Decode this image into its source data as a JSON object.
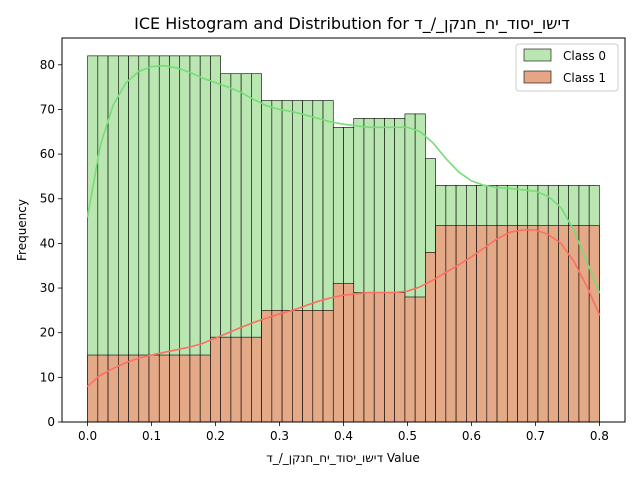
{
  "chart_data": {
    "type": "histogram",
    "title": "ICE Histogram and Distribution for דישו_יסוד_יח_חנקן_/_ד",
    "xlabel": "דישו_יסוד_יח_חנקן_/_ד Value",
    "ylabel": "Frequency",
    "xlim": [
      -0.04,
      0.84
    ],
    "ylim": [
      0,
      86
    ],
    "xticks": [
      0.0,
      0.1,
      0.2,
      0.3,
      0.4,
      0.5,
      0.6,
      0.7,
      0.8
    ],
    "xtick_labels": [
      "0.0",
      "0.1",
      "0.2",
      "0.3",
      "0.4",
      "0.5",
      "0.6",
      "0.7",
      "0.8"
    ],
    "yticks": [
      0,
      10,
      20,
      30,
      40,
      50,
      60,
      70,
      80
    ],
    "ytick_labels": [
      "0",
      "10",
      "20",
      "30",
      "40",
      "50",
      "60",
      "70",
      "80"
    ],
    "bin_edges": [
      0.0,
      0.016,
      0.032,
      0.048,
      0.064,
      0.08,
      0.096,
      0.112,
      0.128,
      0.144,
      0.16,
      0.176,
      0.192,
      0.208,
      0.224,
      0.24,
      0.256,
      0.272,
      0.288,
      0.304,
      0.32,
      0.336,
      0.352,
      0.368,
      0.384,
      0.4,
      0.416,
      0.432,
      0.448,
      0.464,
      0.48,
      0.496,
      0.512,
      0.528,
      0.544,
      0.56,
      0.576,
      0.592,
      0.608,
      0.624,
      0.64,
      0.656,
      0.672,
      0.688,
      0.704,
      0.72,
      0.736,
      0.752,
      0.768,
      0.784,
      0.8
    ],
    "legend_position": "top-right",
    "grid": false,
    "series": [
      {
        "name": "Class 0",
        "color": "#77dd77",
        "fill": "#b9e6b1",
        "values": [
          82,
          82,
          82,
          82,
          82,
          82,
          82,
          82,
          82,
          82,
          82,
          82,
          82,
          78,
          78,
          78,
          78,
          72,
          72,
          72,
          72,
          72,
          72,
          72,
          66,
          66,
          68,
          68,
          68,
          68,
          68,
          69,
          69,
          59,
          53,
          53,
          53,
          53,
          53,
          53,
          53,
          53,
          53,
          53,
          53,
          53,
          53,
          53,
          53,
          53
        ],
        "kde": [
          [
            0.0,
            46
          ],
          [
            0.02,
            62
          ],
          [
            0.04,
            71
          ],
          [
            0.06,
            76
          ],
          [
            0.08,
            78.5
          ],
          [
            0.1,
            79.6
          ],
          [
            0.12,
            79.8
          ],
          [
            0.14,
            79.3
          ],
          [
            0.16,
            78.3
          ],
          [
            0.18,
            77
          ],
          [
            0.2,
            76
          ],
          [
            0.22,
            75
          ],
          [
            0.24,
            73.8
          ],
          [
            0.26,
            72.2
          ],
          [
            0.28,
            70.8
          ],
          [
            0.3,
            70
          ],
          [
            0.32,
            69.5
          ],
          [
            0.34,
            68.8
          ],
          [
            0.36,
            68
          ],
          [
            0.38,
            67.2
          ],
          [
            0.4,
            66.7
          ],
          [
            0.42,
            66.3
          ],
          [
            0.44,
            66
          ],
          [
            0.46,
            66
          ],
          [
            0.48,
            66
          ],
          [
            0.5,
            66
          ],
          [
            0.52,
            65
          ],
          [
            0.54,
            62.5
          ],
          [
            0.56,
            59
          ],
          [
            0.58,
            56
          ],
          [
            0.6,
            54
          ],
          [
            0.62,
            53
          ],
          [
            0.64,
            52.5
          ],
          [
            0.66,
            52.3
          ],
          [
            0.68,
            52
          ],
          [
            0.7,
            51.7
          ],
          [
            0.72,
            50.5
          ],
          [
            0.74,
            48
          ],
          [
            0.76,
            43
          ],
          [
            0.78,
            36
          ],
          [
            0.8,
            29
          ]
        ]
      },
      {
        "name": "Class 1",
        "color": "#ff6f61",
        "fill": "#e6a585",
        "values": [
          15,
          15,
          15,
          15,
          15,
          15,
          15,
          15,
          15,
          15,
          15,
          15,
          19,
          19,
          19,
          19,
          19,
          25,
          25,
          25,
          25,
          25,
          25,
          25,
          31,
          31,
          29,
          29,
          29,
          29,
          29,
          28,
          28,
          38,
          44,
          44,
          44,
          44,
          44,
          44,
          44,
          44,
          44,
          44,
          44,
          44,
          44,
          44,
          44,
          44
        ],
        "kde": [
          [
            0.0,
            8
          ],
          [
            0.02,
            10.5
          ],
          [
            0.04,
            12
          ],
          [
            0.06,
            13.3
          ],
          [
            0.08,
            14.3
          ],
          [
            0.1,
            15
          ],
          [
            0.12,
            15.6
          ],
          [
            0.14,
            16.2
          ],
          [
            0.16,
            16.8
          ],
          [
            0.18,
            17.6
          ],
          [
            0.2,
            18.8
          ],
          [
            0.22,
            20
          ],
          [
            0.24,
            21.2
          ],
          [
            0.26,
            22.3
          ],
          [
            0.28,
            23.3
          ],
          [
            0.3,
            24.2
          ],
          [
            0.32,
            25
          ],
          [
            0.34,
            26
          ],
          [
            0.36,
            27
          ],
          [
            0.38,
            27.8
          ],
          [
            0.4,
            28.4
          ],
          [
            0.42,
            28.7
          ],
          [
            0.44,
            29
          ],
          [
            0.46,
            29
          ],
          [
            0.48,
            29
          ],
          [
            0.5,
            29.3
          ],
          [
            0.52,
            30.3
          ],
          [
            0.54,
            31.8
          ],
          [
            0.56,
            33.5
          ],
          [
            0.58,
            35.2
          ],
          [
            0.6,
            37
          ],
          [
            0.62,
            39
          ],
          [
            0.64,
            41
          ],
          [
            0.66,
            42.5
          ],
          [
            0.68,
            43
          ],
          [
            0.7,
            43
          ],
          [
            0.72,
            42
          ],
          [
            0.74,
            40
          ],
          [
            0.76,
            36
          ],
          [
            0.78,
            30.5
          ],
          [
            0.8,
            24
          ]
        ]
      }
    ]
  }
}
